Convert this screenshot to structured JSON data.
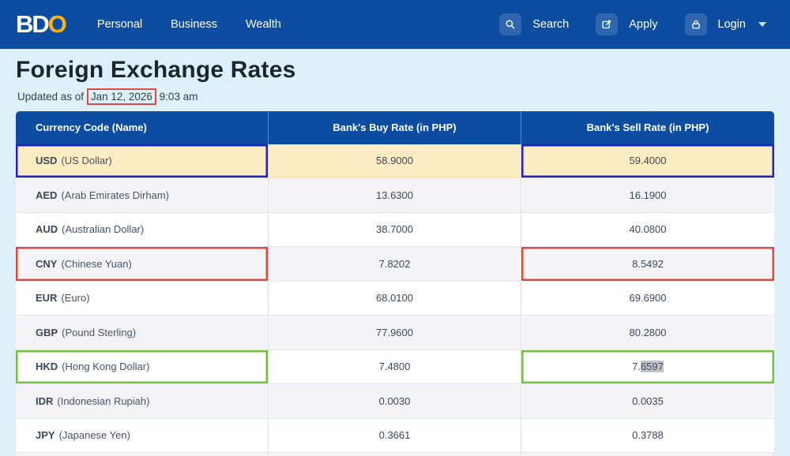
{
  "navbar": {
    "logo_bd": "BD",
    "logo_o": "O",
    "links": [
      {
        "label": "Personal"
      },
      {
        "label": "Business"
      },
      {
        "label": "Wealth"
      }
    ],
    "search_label": "Search",
    "apply_label": "Apply",
    "login_label": "Login"
  },
  "page": {
    "title": "Foreign Exchange Rates",
    "updated_prefix": "Updated as of",
    "updated_date": "Jan 12, 2026",
    "updated_time": "9:03 am"
  },
  "table": {
    "headers": [
      "Currency Code (Name)",
      "Bank's Buy Rate (in PHP)",
      "Bank's Sell Rate (in PHP)"
    ],
    "rows": [
      {
        "code": "USD",
        "name": "(US Dollar)",
        "buy": "58.9000",
        "sell": "59.4000",
        "bg": "yellow",
        "annotation": "blue",
        "sell_selected": null
      },
      {
        "code": "AED",
        "name": "(Arab Emirates Dirham)",
        "buy": "13.6300",
        "sell": "16.1900",
        "bg": "gray",
        "annotation": null,
        "sell_selected": null
      },
      {
        "code": "AUD",
        "name": "(Australian Dollar)",
        "buy": "38.7000",
        "sell": "40.0800",
        "bg": "white",
        "annotation": null,
        "sell_selected": null
      },
      {
        "code": "CNY",
        "name": "(Chinese Yuan)",
        "buy": "7.8202",
        "sell": "8.5492",
        "bg": "gray",
        "annotation": "red",
        "sell_selected": null
      },
      {
        "code": "EUR",
        "name": "(Euro)",
        "buy": "68.0100",
        "sell": "69.6900",
        "bg": "white",
        "annotation": null,
        "sell_selected": null
      },
      {
        "code": "GBP",
        "name": "(Pound Sterling)",
        "buy": "77.9600",
        "sell": "80.2800",
        "bg": "gray",
        "annotation": null,
        "sell_selected": null
      },
      {
        "code": "HKD",
        "name": "(Hong Kong Dollar)",
        "buy": "7.4800",
        "sell": "7.6597",
        "bg": "white",
        "annotation": "green",
        "sell_selected": "6597"
      },
      {
        "code": "IDR",
        "name": "(Indonesian Rupiah)",
        "buy": "0.0030",
        "sell": "0.0035",
        "bg": "gray",
        "annotation": null,
        "sell_selected": null
      },
      {
        "code": "JPY",
        "name": "(Japanese Yen)",
        "buy": "0.3661",
        "sell": "0.3788",
        "bg": "white",
        "annotation": null,
        "sell_selected": null
      }
    ]
  },
  "colors": {
    "brand_blue": "#0c4da2",
    "logo_gold": "#f5b31c",
    "page_bg": "#def1fb",
    "row_highlight_yellow": "#fcecc3",
    "annotation_blue": "#2222c8",
    "annotation_red": "#dc4b3f",
    "annotation_green": "#79c143",
    "selection_gray": "#c4c4c4"
  }
}
